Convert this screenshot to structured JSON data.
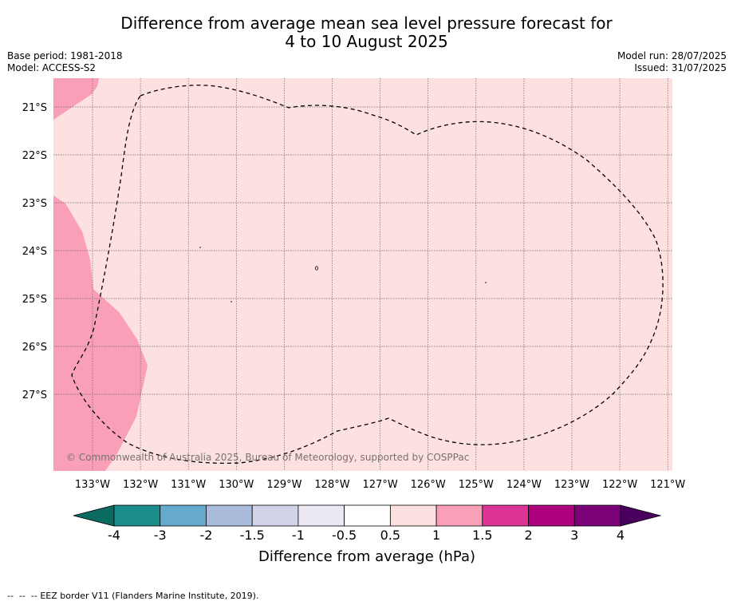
{
  "title": {
    "line1": "Difference from average mean sea level pressure forecast for",
    "line2": "4 to 10 August 2025"
  },
  "meta": {
    "base_period": "Base period: 1981-2018",
    "model": "Model: ACCESS-S2",
    "model_run": "Model run: 28/07/2025",
    "issued": "Issued: 31/07/2025"
  },
  "map": {
    "lat_labels": [
      "21°S",
      "22°S",
      "23°S",
      "24°S",
      "25°S",
      "26°S",
      "27°S"
    ],
    "lon_labels": [
      "133°W",
      "132°W",
      "131°W",
      "130°W",
      "129°W",
      "128°W",
      "127°W",
      "126°W",
      "125°W",
      "124°W",
      "123°W",
      "122°W",
      "121°W"
    ],
    "copyright": "© Commonwealth of Australia 2025, Bureau of Meteorology, supported by COSPPac",
    "background_anomaly_range": "0.5 to 1",
    "colors": {
      "anomaly_0_5_to_1": "#fde0e0",
      "anomaly_1_to_1_5": "#f9a0b8",
      "eez_border": "#000000"
    }
  },
  "colorbar": {
    "tick_labels": [
      "-4",
      "-3",
      "-2",
      "-1.5",
      "-1",
      "-0.5",
      "0.5",
      "1",
      "1.5",
      "2",
      "3",
      "4"
    ],
    "colors": [
      "#1a8c8c",
      "#66a9cf",
      "#a9bcdb",
      "#d1d3e8",
      "#ece8f2",
      "#ffffff",
      "#fde0e0",
      "#f9a0b8",
      "#dd3497",
      "#ae017e",
      "#7a0177"
    ],
    "under_color": "#0c6b60",
    "over_color": "#4a005e",
    "label": "Difference from average (hPa)"
  },
  "legend": {
    "eez": "EEZ border V11 (Flanders Marine Institute, 2019)."
  }
}
